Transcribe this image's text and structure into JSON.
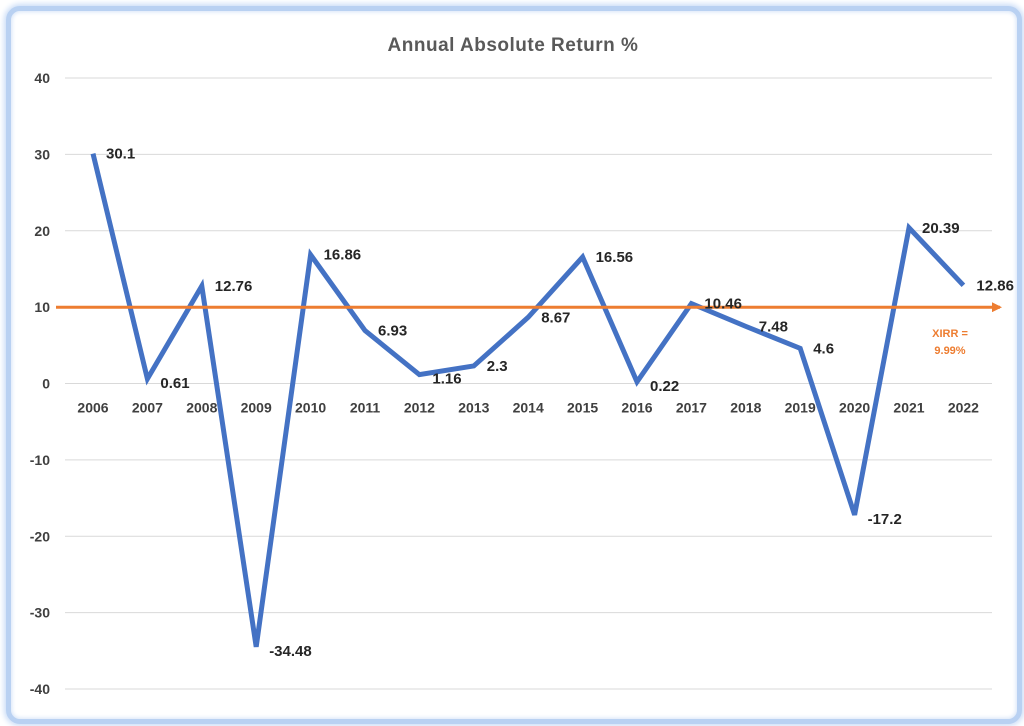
{
  "chart_data": {
    "type": "line",
    "title": "Annual Absolute Return %",
    "xlabel": "",
    "ylabel": "",
    "categories": [
      "2006",
      "2007",
      "2008",
      "2009",
      "2010",
      "2011",
      "2012",
      "2013",
      "2014",
      "2015",
      "2016",
      "2017",
      "2018",
      "2019",
      "2020",
      "2021",
      "2022"
    ],
    "series": [
      {
        "values": [
          30.1,
          0.61,
          12.76,
          -34.48,
          16.86,
          6.93,
          1.16,
          2.3,
          8.67,
          16.56,
          0.22,
          10.46,
          7.48,
          4.6,
          -17.2,
          20.39,
          12.86
        ],
        "data_labels": [
          "30.1",
          "0.61",
          "12.76",
          "-34.48",
          "16.86",
          "6.93",
          "1.16",
          "2.3",
          "8.67",
          "16.56",
          "0.22",
          "10.46",
          "7.48",
          "4.6",
          "-17.2",
          "20.39",
          "12.86"
        ],
        "color": "#4472c4"
      }
    ],
    "reference_line": {
      "value": 9.99,
      "color": "#ed7d31",
      "arrow": true
    },
    "annotation": {
      "lines": [
        "XIRR =",
        "9.99%"
      ],
      "color": "#ed7d31"
    },
    "ylim": [
      -40,
      40
    ],
    "yticks": [
      "40",
      "30",
      "20",
      "10",
      "0",
      "-10",
      "-20",
      "-30",
      "-40"
    ],
    "grid": true,
    "legend": "none"
  }
}
